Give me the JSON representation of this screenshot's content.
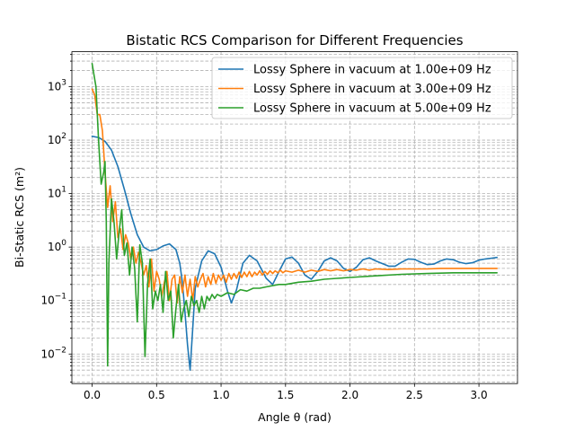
{
  "chart_data": {
    "type": "line",
    "title": "Bistatic RCS Comparison for Different Frequencies",
    "xlabel": "Angle θ (rad)",
    "ylabel": "Bi-Static RCS (m²)",
    "xlim": [
      -0.157,
      3.299
    ],
    "ylim": [
      0.0028,
      4500
    ],
    "yscale": "log",
    "grid": "both (major and minor), dashed",
    "legend_position": "top-right",
    "x_ticks": [
      {
        "value": 0,
        "label": "0.0"
      },
      {
        "value": 0.5,
        "label": "0.5"
      },
      {
        "value": 1.0,
        "label": "1.0"
      },
      {
        "value": 1.5,
        "label": "1.5"
      },
      {
        "value": 2.0,
        "label": "2.0"
      },
      {
        "value": 2.5,
        "label": "2.5"
      },
      {
        "value": 3.0,
        "label": "3.0"
      }
    ],
    "y_ticks": [
      {
        "value": 0.01,
        "base": "10",
        "exp": "−2"
      },
      {
        "value": 0.1,
        "base": "10",
        "exp": "−1"
      },
      {
        "value": 1,
        "base": "10",
        "exp": "0"
      },
      {
        "value": 10,
        "base": "10",
        "exp": "1"
      },
      {
        "value": 100,
        "base": "10",
        "exp": "2"
      },
      {
        "value": 1000,
        "base": "10",
        "exp": "3"
      }
    ],
    "series": [
      {
        "name": "Lossy Sphere in vacuum at 1.00e+09 Hz",
        "color": "#1f77b4",
        "points": [
          [
            0,
            118
          ],
          [
            0.05,
            112
          ],
          [
            0.1,
            95
          ],
          [
            0.15,
            65
          ],
          [
            0.2,
            32
          ],
          [
            0.25,
            12
          ],
          [
            0.3,
            4.2
          ],
          [
            0.35,
            1.7
          ],
          [
            0.4,
            1.0
          ],
          [
            0.45,
            0.85
          ],
          [
            0.5,
            0.9
          ],
          [
            0.55,
            1.05
          ],
          [
            0.6,
            1.15
          ],
          [
            0.65,
            0.9
          ],
          [
            0.68,
            0.5
          ],
          [
            0.7,
            0.22
          ],
          [
            0.72,
            0.06
          ],
          [
            0.74,
            0.015
          ],
          [
            0.76,
            0.005
          ],
          [
            0.78,
            0.03
          ],
          [
            0.8,
            0.17
          ],
          [
            0.85,
            0.55
          ],
          [
            0.9,
            0.85
          ],
          [
            0.95,
            0.75
          ],
          [
            1.0,
            0.42
          ],
          [
            1.05,
            0.15
          ],
          [
            1.08,
            0.09
          ],
          [
            1.12,
            0.16
          ],
          [
            1.17,
            0.5
          ],
          [
            1.22,
            0.7
          ],
          [
            1.28,
            0.55
          ],
          [
            1.35,
            0.26
          ],
          [
            1.4,
            0.2
          ],
          [
            1.45,
            0.35
          ],
          [
            1.5,
            0.6
          ],
          [
            1.55,
            0.65
          ],
          [
            1.6,
            0.5
          ],
          [
            1.65,
            0.3
          ],
          [
            1.7,
            0.25
          ],
          [
            1.75,
            0.35
          ],
          [
            1.8,
            0.55
          ],
          [
            1.85,
            0.63
          ],
          [
            1.9,
            0.55
          ],
          [
            1.95,
            0.4
          ],
          [
            2.0,
            0.35
          ],
          [
            2.05,
            0.42
          ],
          [
            2.1,
            0.58
          ],
          [
            2.15,
            0.63
          ],
          [
            2.2,
            0.55
          ],
          [
            2.3,
            0.44
          ],
          [
            2.35,
            0.44
          ],
          [
            2.4,
            0.52
          ],
          [
            2.45,
            0.6
          ],
          [
            2.5,
            0.59
          ],
          [
            2.55,
            0.52
          ],
          [
            2.6,
            0.47
          ],
          [
            2.65,
            0.48
          ],
          [
            2.7,
            0.55
          ],
          [
            2.75,
            0.6
          ],
          [
            2.8,
            0.58
          ],
          [
            2.85,
            0.52
          ],
          [
            2.9,
            0.49
          ],
          [
            2.95,
            0.51
          ],
          [
            3.0,
            0.57
          ],
          [
            3.05,
            0.6
          ],
          [
            3.1,
            0.62
          ],
          [
            3.14,
            0.64
          ]
        ]
      },
      {
        "name": "Lossy Sphere in vacuum at 3.00e+09 Hz",
        "color": "#ff7f0e",
        "points": [
          [
            0,
            900
          ],
          [
            0.02,
            700
          ],
          [
            0.04,
            300
          ],
          [
            0.06,
            300
          ],
          [
            0.08,
            150
          ],
          [
            0.1,
            25
          ],
          [
            0.12,
            5.5
          ],
          [
            0.14,
            14
          ],
          [
            0.16,
            3
          ],
          [
            0.18,
            7
          ],
          [
            0.2,
            1.5
          ],
          [
            0.22,
            2.2
          ],
          [
            0.24,
            0.9
          ],
          [
            0.26,
            1.7
          ],
          [
            0.28,
            1.2
          ],
          [
            0.3,
            0.6
          ],
          [
            0.32,
            1.0
          ],
          [
            0.34,
            0.5
          ],
          [
            0.36,
            0.8
          ],
          [
            0.38,
            0.5
          ],
          [
            0.4,
            0.3
          ],
          [
            0.42,
            0.45
          ],
          [
            0.44,
            0.18
          ],
          [
            0.46,
            0.6
          ],
          [
            0.48,
            0.15
          ],
          [
            0.5,
            0.35
          ],
          [
            0.52,
            0.25
          ],
          [
            0.54,
            0.12
          ],
          [
            0.56,
            0.22
          ],
          [
            0.58,
            0.35
          ],
          [
            0.6,
            0.1
          ],
          [
            0.62,
            0.25
          ],
          [
            0.64,
            0.3
          ],
          [
            0.66,
            0.09
          ],
          [
            0.68,
            0.28
          ],
          [
            0.7,
            0.14
          ],
          [
            0.72,
            0.3
          ],
          [
            0.74,
            0.12
          ],
          [
            0.76,
            0.25
          ],
          [
            0.78,
            0.1
          ],
          [
            0.8,
            0.28
          ],
          [
            0.82,
            0.18
          ],
          [
            0.84,
            0.25
          ],
          [
            0.86,
            0.32
          ],
          [
            0.88,
            0.18
          ],
          [
            0.9,
            0.28
          ],
          [
            0.92,
            0.2
          ],
          [
            0.94,
            0.32
          ],
          [
            0.96,
            0.21
          ],
          [
            0.98,
            0.3
          ],
          [
            1.0,
            0.24
          ],
          [
            1.02,
            0.3
          ],
          [
            1.04,
            0.22
          ],
          [
            1.06,
            0.32
          ],
          [
            1.08,
            0.25
          ],
          [
            1.1,
            0.32
          ],
          [
            1.12,
            0.26
          ],
          [
            1.14,
            0.34
          ],
          [
            1.16,
            0.27
          ],
          [
            1.18,
            0.34
          ],
          [
            1.2,
            0.28
          ],
          [
            1.22,
            0.35
          ],
          [
            1.24,
            0.28
          ],
          [
            1.26,
            0.34
          ],
          [
            1.28,
            0.3
          ],
          [
            1.3,
            0.36
          ],
          [
            1.32,
            0.3
          ],
          [
            1.34,
            0.35
          ],
          [
            1.36,
            0.31
          ],
          [
            1.38,
            0.36
          ],
          [
            1.4,
            0.32
          ],
          [
            1.42,
            0.36
          ],
          [
            1.44,
            0.33
          ],
          [
            1.46,
            0.37
          ],
          [
            1.48,
            0.33
          ],
          [
            1.5,
            0.36
          ],
          [
            1.55,
            0.34
          ],
          [
            1.6,
            0.37
          ],
          [
            1.65,
            0.34
          ],
          [
            1.7,
            0.37
          ],
          [
            1.75,
            0.35
          ],
          [
            1.8,
            0.38
          ],
          [
            1.85,
            0.36
          ],
          [
            1.9,
            0.38
          ],
          [
            1.95,
            0.36
          ],
          [
            2.0,
            0.38
          ],
          [
            2.05,
            0.37
          ],
          [
            2.1,
            0.39
          ],
          [
            2.15,
            0.37
          ],
          [
            2.2,
            0.39
          ],
          [
            2.3,
            0.38
          ],
          [
            2.4,
            0.39
          ],
          [
            2.5,
            0.39
          ],
          [
            2.6,
            0.39
          ],
          [
            2.7,
            0.4
          ],
          [
            2.8,
            0.4
          ],
          [
            2.9,
            0.4
          ],
          [
            3.0,
            0.4
          ],
          [
            3.14,
            0.4
          ]
        ]
      },
      {
        "name": "Lossy Sphere in vacuum at 5.00e+09 Hz",
        "color": "#2ca02c",
        "points": [
          [
            0,
            2700
          ],
          [
            0.03,
            1000
          ],
          [
            0.05,
            100
          ],
          [
            0.07,
            15
          ],
          [
            0.09,
            25
          ],
          [
            0.1,
            40
          ],
          [
            0.11,
            3
          ],
          [
            0.12,
            0.006
          ],
          [
            0.13,
            0.5
          ],
          [
            0.15,
            8
          ],
          [
            0.17,
            3
          ],
          [
            0.19,
            0.6
          ],
          [
            0.21,
            2
          ],
          [
            0.23,
            5
          ],
          [
            0.25,
            0.7
          ],
          [
            0.27,
            1.2
          ],
          [
            0.29,
            0.3
          ],
          [
            0.31,
            1.0
          ],
          [
            0.33,
            0.4
          ],
          [
            0.35,
            0.04
          ],
          [
            0.37,
            1.1
          ],
          [
            0.39,
            0.5
          ],
          [
            0.41,
            0.009
          ],
          [
            0.43,
            0.2
          ],
          [
            0.45,
            0.6
          ],
          [
            0.47,
            0.07
          ],
          [
            0.49,
            0.15
          ],
          [
            0.51,
            0.1
          ],
          [
            0.53,
            0.2
          ],
          [
            0.55,
            0.06
          ],
          [
            0.57,
            0.35
          ],
          [
            0.59,
            0.1
          ],
          [
            0.61,
            0.15
          ],
          [
            0.63,
            0.02
          ],
          [
            0.65,
            0.07
          ],
          [
            0.67,
            0.2
          ],
          [
            0.69,
            0.04
          ],
          [
            0.71,
            0.07
          ],
          [
            0.73,
            0.1
          ],
          [
            0.75,
            0.05
          ],
          [
            0.77,
            0.12
          ],
          [
            0.79,
            0.08
          ],
          [
            0.81,
            0.1
          ],
          [
            0.83,
            0.06
          ],
          [
            0.85,
            0.12
          ],
          [
            0.87,
            0.07
          ],
          [
            0.89,
            0.12
          ],
          [
            0.91,
            0.1
          ],
          [
            0.93,
            0.13
          ],
          [
            0.95,
            0.11
          ],
          [
            0.97,
            0.13
          ],
          [
            1.0,
            0.12
          ],
          [
            1.05,
            0.14
          ],
          [
            1.1,
            0.13
          ],
          [
            1.15,
            0.16
          ],
          [
            1.2,
            0.15
          ],
          [
            1.25,
            0.17
          ],
          [
            1.3,
            0.17
          ],
          [
            1.35,
            0.18
          ],
          [
            1.4,
            0.19
          ],
          [
            1.45,
            0.2
          ],
          [
            1.5,
            0.2
          ],
          [
            1.6,
            0.22
          ],
          [
            1.7,
            0.23
          ],
          [
            1.8,
            0.25
          ],
          [
            1.9,
            0.26
          ],
          [
            2.0,
            0.27
          ],
          [
            2.2,
            0.29
          ],
          [
            2.4,
            0.31
          ],
          [
            2.6,
            0.32
          ],
          [
            2.8,
            0.33
          ],
          [
            3.0,
            0.33
          ],
          [
            3.14,
            0.33
          ]
        ]
      }
    ]
  }
}
